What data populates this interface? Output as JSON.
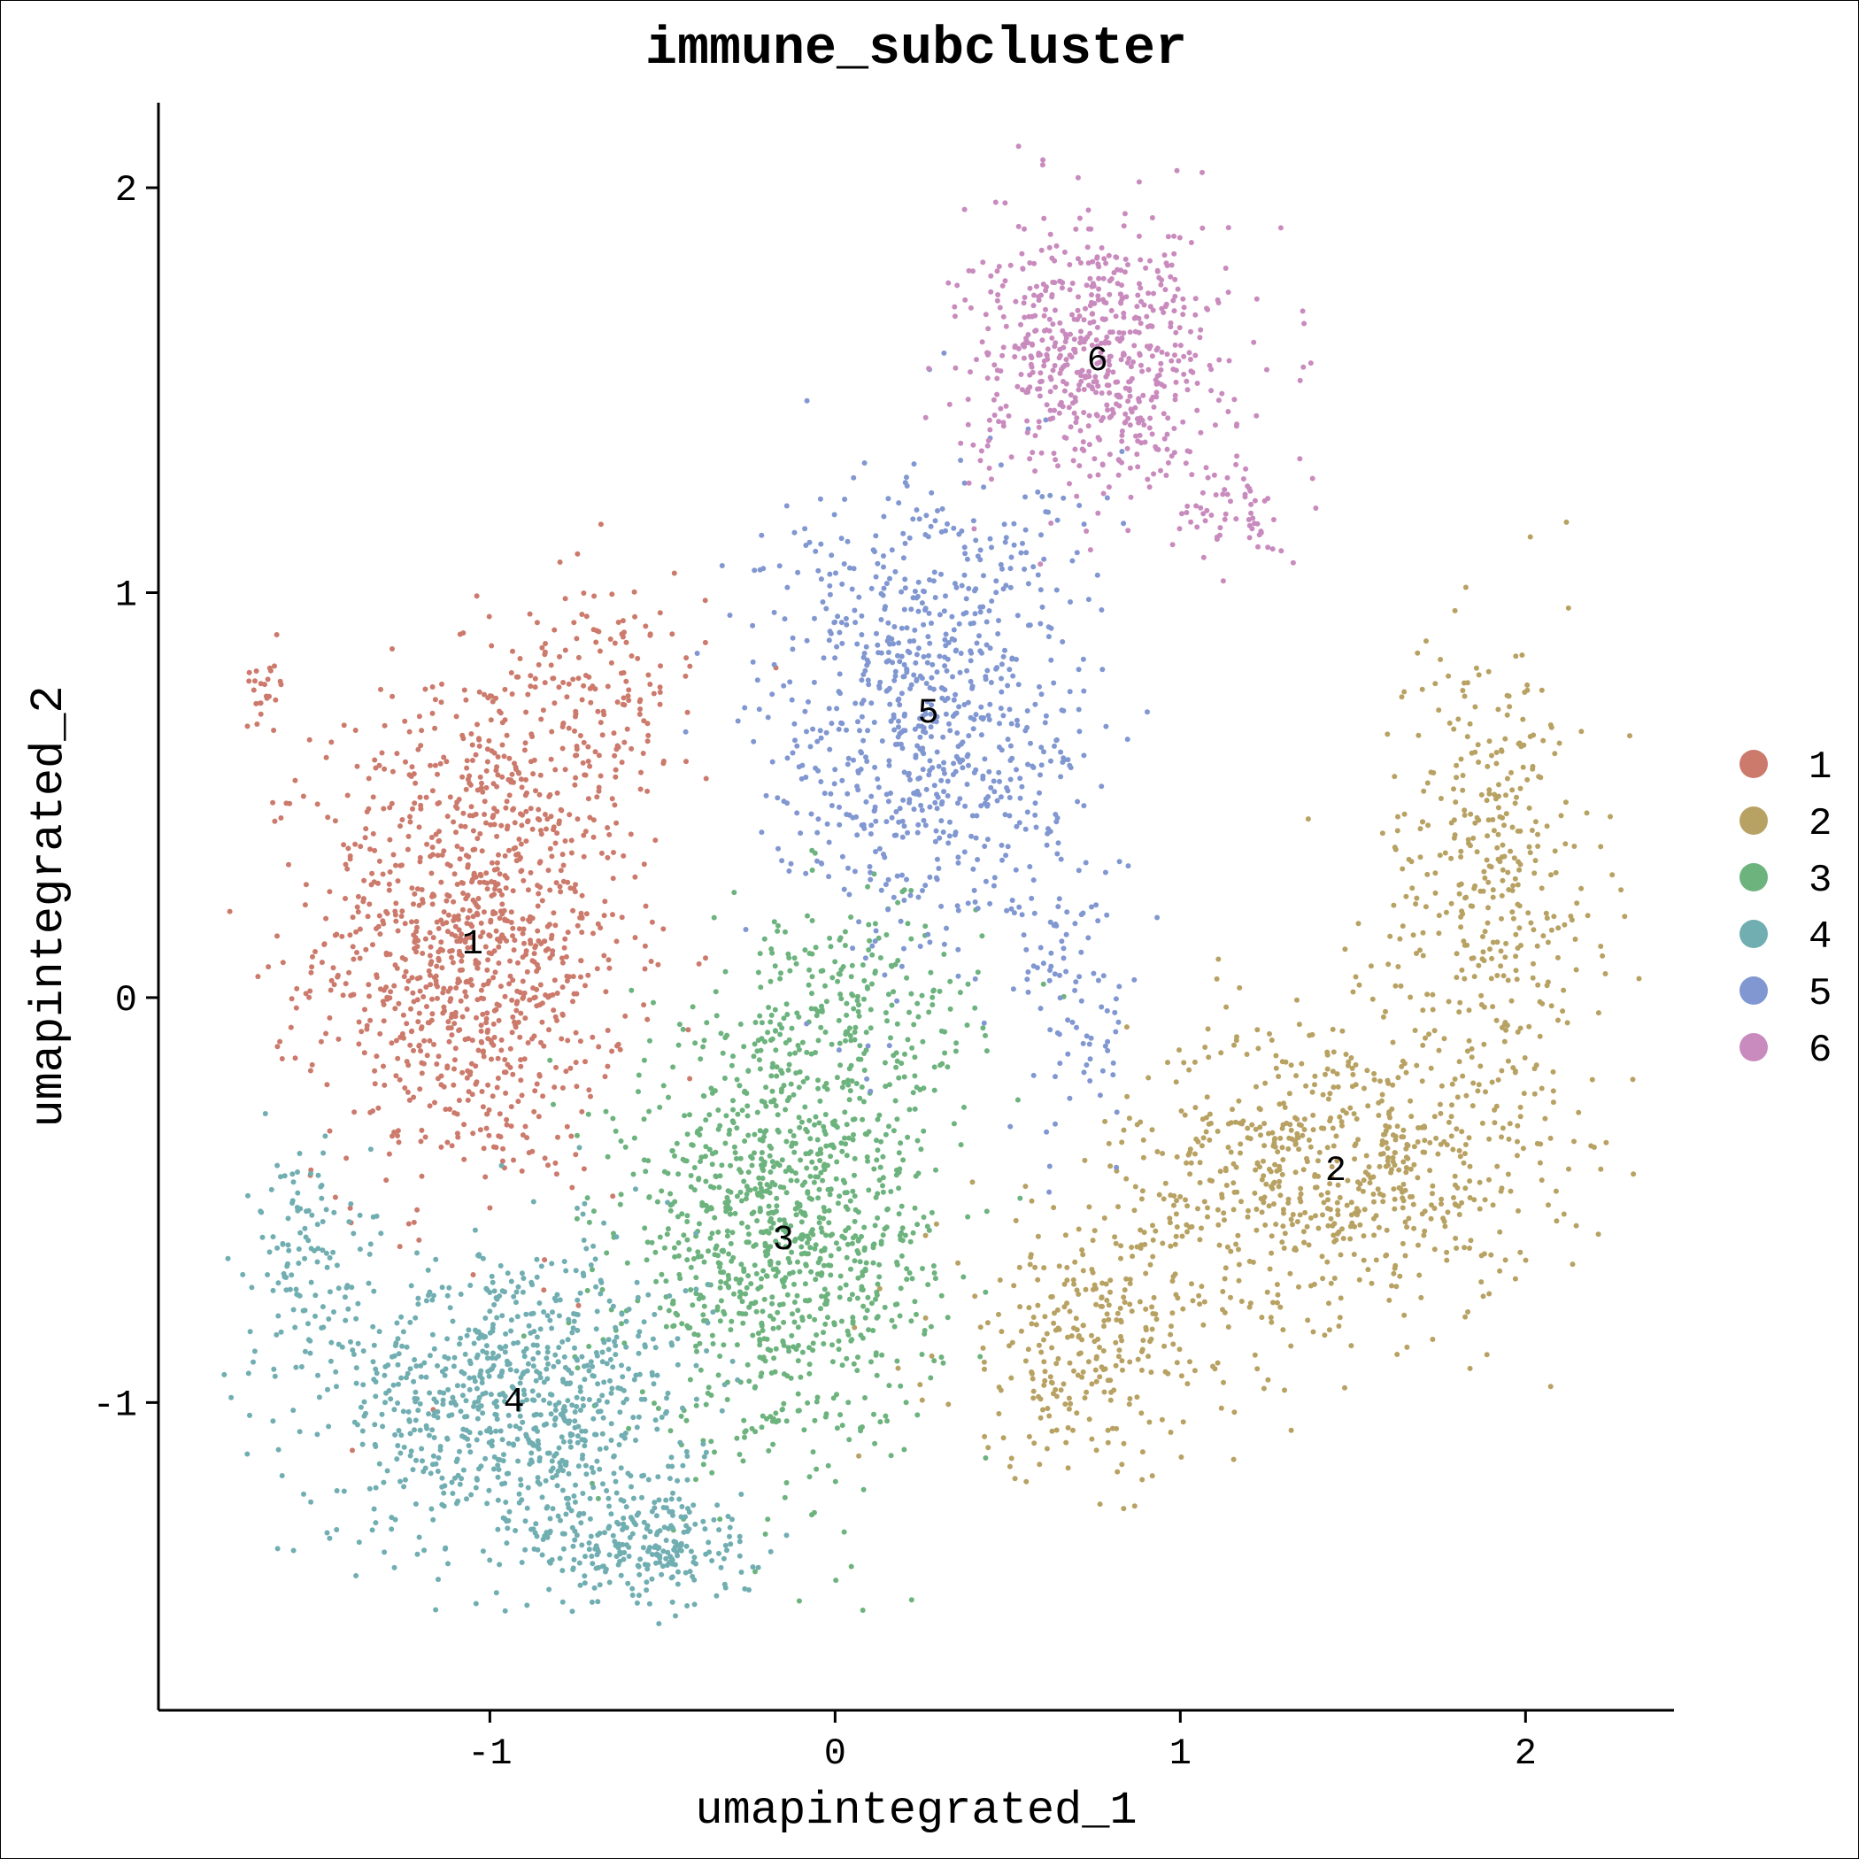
{
  "chart_data": {
    "type": "scatter",
    "title": "immune_subcluster",
    "xlabel": "umapintegrated_1",
    "ylabel": "umapintegrated_2",
    "xlim": [
      -1.96,
      2.43
    ],
    "ylim": [
      -1.76,
      2.21
    ],
    "x_ticks": [
      "-1",
      "0",
      "1",
      "2"
    ],
    "y_ticks": [
      "-1",
      "0",
      "1",
      "2"
    ],
    "x_tick_values": [
      -1,
      0,
      1,
      2
    ],
    "y_tick_values": [
      -1,
      0,
      1,
      2
    ],
    "grid": false,
    "legend_position": "right",
    "series": [
      {
        "name": "1",
        "color": "#CC7A6C",
        "label_pos": [
          -1.05,
          0.14
        ],
        "clusters": [
          {
            "cx": -1.05,
            "cy": 0.14,
            "sx": 0.3,
            "sy": 0.4,
            "n": 1100
          },
          {
            "cx": -0.7,
            "cy": 0.75,
            "sx": 0.22,
            "sy": 0.2,
            "n": 180
          },
          {
            "cx": -1.65,
            "cy": 0.78,
            "sx": 0.04,
            "sy": 0.06,
            "n": 25
          }
        ]
      },
      {
        "name": "2",
        "color": "#B8A263",
        "label_pos": [
          1.45,
          -0.42
        ],
        "clusters": [
          {
            "cx": 1.45,
            "cy": -0.42,
            "sx": 0.4,
            "sy": 0.25,
            "n": 700
          },
          {
            "cx": 1.9,
            "cy": 0.3,
            "sx": 0.22,
            "sy": 0.4,
            "n": 380
          },
          {
            "cx": 0.75,
            "cy": -0.85,
            "sx": 0.3,
            "sy": 0.22,
            "n": 320
          }
        ]
      },
      {
        "name": "3",
        "color": "#6DB37E",
        "label_pos": [
          -0.15,
          -0.59
        ],
        "clusters": [
          {
            "cx": -0.15,
            "cy": -0.59,
            "sx": 0.3,
            "sy": 0.35,
            "n": 1100
          },
          {
            "cx": 0.05,
            "cy": -0.05,
            "sx": 0.25,
            "sy": 0.2,
            "n": 220
          }
        ]
      },
      {
        "name": "4",
        "color": "#71AEB2",
        "label_pos": [
          -0.93,
          -0.99
        ],
        "clusters": [
          {
            "cx": -0.93,
            "cy": -0.99,
            "sx": 0.35,
            "sy": 0.25,
            "n": 850
          },
          {
            "cx": -0.55,
            "cy": -1.35,
            "sx": 0.22,
            "sy": 0.1,
            "n": 250
          },
          {
            "cx": -1.55,
            "cy": -0.65,
            "sx": 0.1,
            "sy": 0.2,
            "n": 120
          }
        ]
      },
      {
        "name": "5",
        "color": "#8197D1",
        "label_pos": [
          0.27,
          0.71
        ],
        "clusters": [
          {
            "cx": 0.27,
            "cy": 0.71,
            "sx": 0.32,
            "sy": 0.4,
            "n": 850
          },
          {
            "cx": 0.7,
            "cy": 0.0,
            "sx": 0.12,
            "sy": 0.25,
            "n": 90
          }
        ]
      },
      {
        "name": "6",
        "color": "#C98BBE",
        "label_pos": [
          0.76,
          1.58
        ],
        "clusters": [
          {
            "cx": 0.76,
            "cy": 1.58,
            "sx": 0.25,
            "sy": 0.22,
            "n": 650
          },
          {
            "cx": 1.15,
            "cy": 1.2,
            "sx": 0.1,
            "sy": 0.1,
            "n": 60
          }
        ]
      }
    ]
  }
}
